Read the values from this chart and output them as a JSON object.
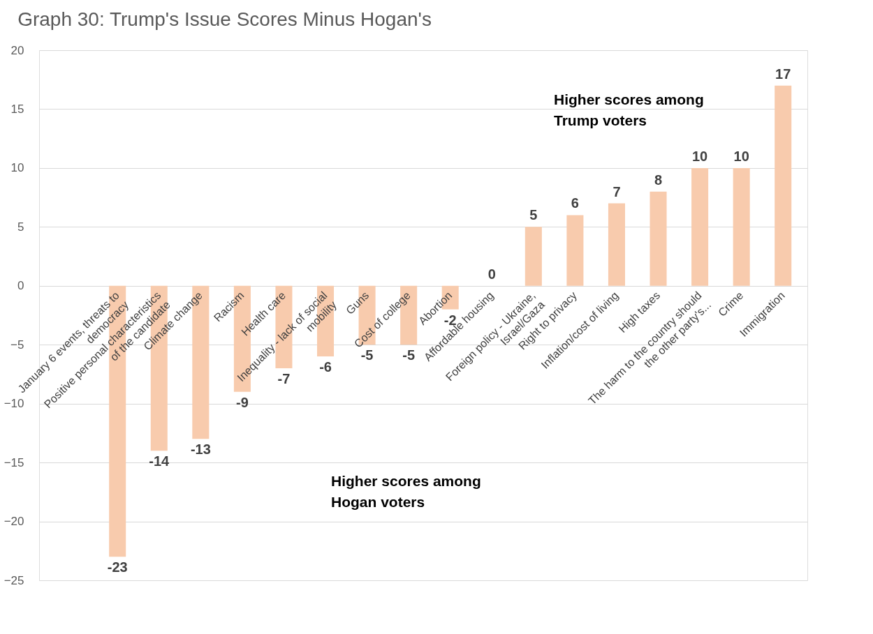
{
  "chart_data": {
    "type": "bar",
    "title": "Graph 30: Trump's Issue Scores Minus Hogan's",
    "categories": [
      "January 6 events, threats to democracy",
      "Positive personal characteristics of the candidate",
      "Climate change",
      "Racism",
      "Health care",
      "Inequality - lack of social mobility",
      "Guns",
      "Cost of college",
      "Abortion",
      "Affordable housing",
      "Foreign policy - Ukraine, Israel/Gaza",
      "Right to privacy",
      "Inflation/cost of living",
      "High taxes",
      "The harm to the country should the other party's...",
      "Crime",
      "Immigration"
    ],
    "values": [
      -23,
      -14,
      -13,
      -9,
      -7,
      -6,
      -5,
      -5,
      -2,
      0,
      5,
      6,
      7,
      8,
      10,
      10,
      17
    ],
    "color": "#f8cbad",
    "ylim": [
      -25,
      20
    ],
    "yticks": [
      -25,
      -20,
      -15,
      -10,
      -5,
      0,
      5,
      10,
      15,
      20
    ],
    "grid": "y",
    "data_labels": true,
    "annotations": [
      "Higher scores among Trump voters",
      "Higher scores among Hogan voters"
    ]
  }
}
